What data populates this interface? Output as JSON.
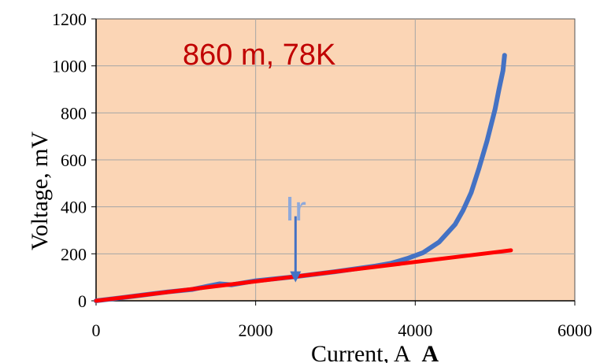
{
  "chart_data": {
    "type": "line",
    "title": "",
    "xlabel": "Current, A",
    "xlabel_suffix": "A",
    "ylabel": "Voltage, mV",
    "xlim": [
      0,
      6000
    ],
    "ylim": [
      0,
      1200
    ],
    "x_ticks": [
      "0",
      "2000",
      "4000",
      "6000"
    ],
    "y_ticks": [
      "0",
      "200",
      "400",
      "600",
      "800",
      "1000",
      "1200"
    ],
    "grid": true,
    "legend": "none",
    "annotation": "860 m, 78K",
    "marker_label": "Ir",
    "marker_x": 2500,
    "marker_arrow_from_y": 360,
    "marker_arrow_to_y": 85,
    "series": [
      {
        "color": "#4472c4",
        "x": [
          0,
          300,
          600,
          900,
          1200,
          1400,
          1550,
          1700,
          2000,
          2500,
          3000,
          3500,
          3700,
          3900,
          4100,
          4300,
          4500,
          4600,
          4700,
          4800,
          4900,
          5000,
          5050,
          5100,
          5120
        ],
        "y": [
          0,
          12,
          25,
          38,
          48,
          62,
          72,
          68,
          85,
          103,
          124,
          148,
          160,
          180,
          205,
          250,
          325,
          385,
          460,
          565,
          680,
          815,
          900,
          980,
          1045
        ]
      },
      {
        "color": "#ff0000",
        "x": [
          0,
          5200
        ],
        "y": [
          0,
          215
        ]
      }
    ]
  },
  "colors": {
    "plot_background": "#fbd5b5",
    "grid": "#a6a6a6",
    "annotation": "#c00000",
    "marker_label": "#8ea9db",
    "arrow": "#4472c4"
  }
}
